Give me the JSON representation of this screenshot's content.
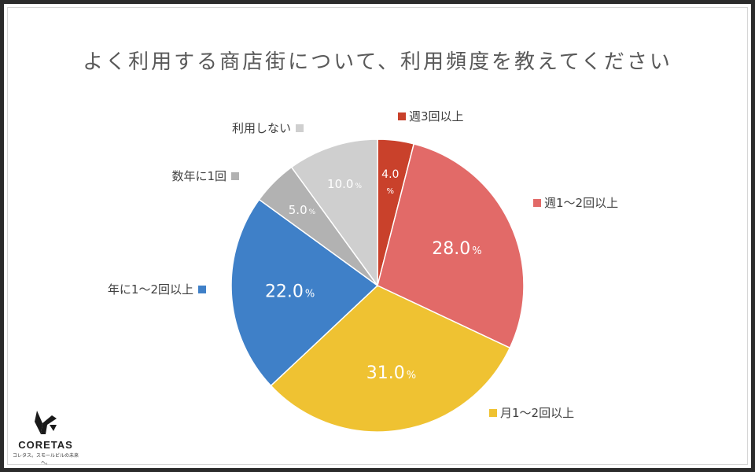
{
  "chart_data": {
    "type": "pie",
    "title": "よく利用する商店街について、利用頻度を教えてください",
    "slices": [
      {
        "label": "週3回以上",
        "value": 4.0,
        "display": "4.0",
        "color": "#c9412b"
      },
      {
        "label": "週1〜2回以上",
        "value": 28.0,
        "display": "28.0",
        "color": "#e26a68"
      },
      {
        "label": "月1〜2回以上",
        "value": 31.0,
        "display": "31.0",
        "color": "#efc232"
      },
      {
        "label": "年に1〜2回以上",
        "value": 22.0,
        "display": "22.0",
        "color": "#3f80c8"
      },
      {
        "label": "数年に1回",
        "value": 5.0,
        "display": "5.0",
        "color": "#b2b2b2"
      },
      {
        "label": "利用しない",
        "value": 10.0,
        "display": "10.0",
        "color": "#cfcfcf"
      }
    ],
    "unit": "%",
    "legend": "labels-outside"
  },
  "logo": {
    "name": "CORETAS",
    "tagline": "コレタス。スモールビルの未来へ。"
  }
}
